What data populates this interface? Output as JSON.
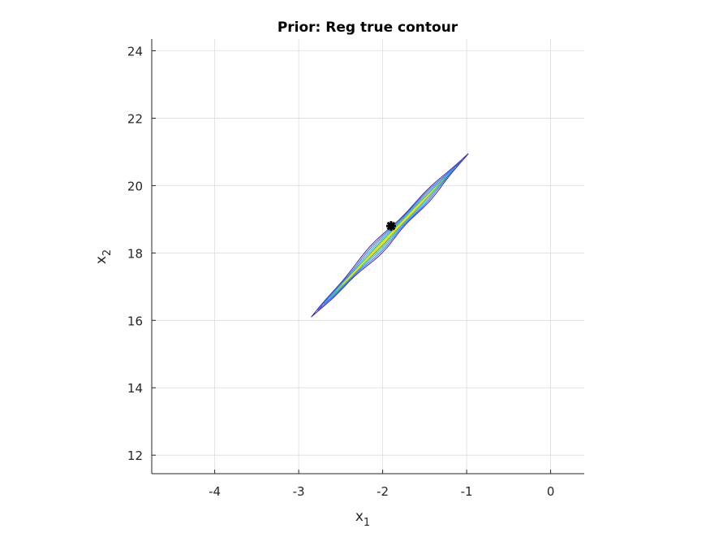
{
  "chart_data": {
    "type": "contour",
    "title": "Prior: Reg true contour",
    "xlabel": {
      "base": "x",
      "subscript": "1"
    },
    "ylabel": {
      "base": "x",
      "subscript": "2"
    },
    "xlim": [
      -4.75,
      0.4
    ],
    "ylim": [
      11.45,
      24.35
    ],
    "xticks": [
      -4,
      -3,
      -2,
      -1,
      0
    ],
    "yticks": [
      12,
      14,
      16,
      18,
      20,
      22,
      24
    ],
    "grid": true,
    "colormap": "parula",
    "contour_ridge": {
      "start": [
        -2.85,
        16.1
      ],
      "end": [
        -0.98,
        20.95
      ],
      "levels": [
        {
          "color": "#3e26a8",
          "half_width": 0.065
        },
        {
          "color": "#3b5ff0",
          "half_width": 0.05
        },
        {
          "color": "#2ea6e0",
          "half_width": 0.035
        },
        {
          "color": "#40bf9b",
          "half_width": 0.022
        },
        {
          "color": "#b7c43a",
          "half_width": 0.012
        },
        {
          "color": "#f0e420",
          "half_width": 0.005
        }
      ]
    },
    "marker": {
      "x": -1.9,
      "y": 18.8,
      "symbol": "asterisk",
      "color": "#000000"
    }
  }
}
